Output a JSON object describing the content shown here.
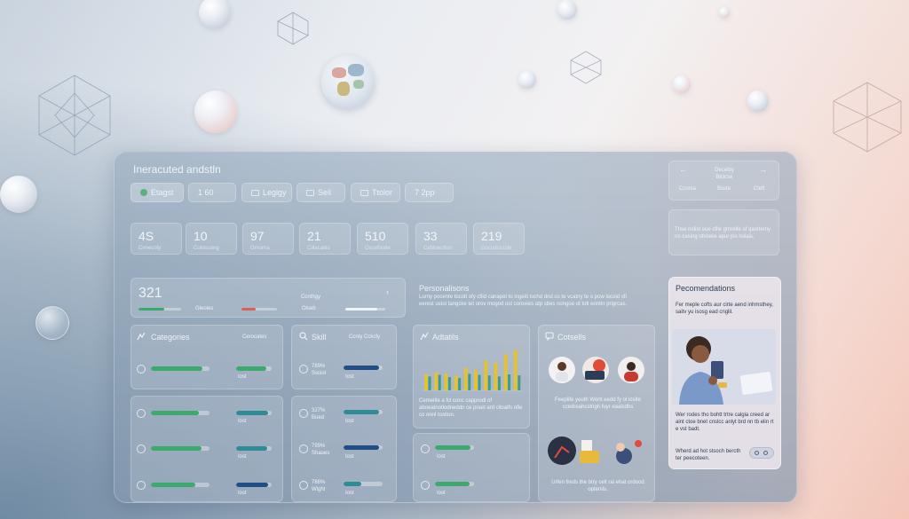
{
  "header": {
    "title": "Ineracuted andstln"
  },
  "filters": [
    {
      "label": "Etagst",
      "icon": "green-dot-icon"
    },
    {
      "label": "1 60"
    },
    {
      "label": "Leglgy",
      "icon": "square-icon"
    },
    {
      "label": "Seil",
      "icon": "square-icon"
    },
    {
      "label": "Ttolor",
      "icon": "square-icon"
    },
    {
      "label": "7 2pp"
    }
  ],
  "stats": [
    {
      "value": "4S",
      "label": "Cnnecoty"
    },
    {
      "value": "10",
      "label": "Colorcoing"
    },
    {
      "value": "97",
      "label": "Omonra"
    },
    {
      "value": "21",
      "label": "Cillacaitio"
    },
    {
      "value": "510",
      "label": "Oscefoutie"
    },
    {
      "value": "33",
      "label": "Cebtoection"
    },
    {
      "value": "219",
      "label": "Gociatioctsle"
    }
  ],
  "summary": {
    "value": "321",
    "label1": "Ccnthgy",
    "label2": "Gleoies",
    "label3": "Olseb",
    "chevron": "›",
    "progress_green": 0.6,
    "progress_red": 0.4,
    "progress_white": 0.8
  },
  "personalities": {
    "title": "Personalisons",
    "body": "Lorny pocente tocotl ofy cfild canapet to ingeiti lochd dnd co te vcatiry te o pow locoid sfi eerest ustoi tangcke tet orov mogod ost corovies atp sbes nongoe ot toti eontin prigrcas."
  },
  "categories": {
    "title": "Categories",
    "side": "Cerocates",
    "icon": "chart-icon",
    "rows": [
      {
        "icon": "circle-icon",
        "left": 0.88,
        "right": 0.85,
        "sub": "Iost",
        "right_color": "green"
      },
      {
        "icon": "circle-icon",
        "left": 0.82,
        "right": 0.9,
        "sub": "Iost",
        "right_color": "teal"
      },
      {
        "icon": "circle-icon",
        "left": 0.86,
        "right": 0.88,
        "sub": "Iost",
        "right_color": "teal"
      },
      {
        "icon": "circle-icon",
        "left": 0.76,
        "right": 0.9,
        "sub": "Iost",
        "right_color": "navy"
      }
    ]
  },
  "skill": {
    "title": "Skill",
    "side": "Ccnty Cckcfy",
    "icon": "search-icon",
    "rows": [
      {
        "pct": "789%",
        "sub": "Ssciol",
        "bar": 0.92,
        "color": "navy",
        "sub2": "Iost"
      },
      {
        "pct": "327%",
        "sub": "Boed",
        "bar": 0.9,
        "color": "teal",
        "sub2": "Iost"
      },
      {
        "pct": "799%",
        "sub": "Shaoes",
        "bar": 0.92,
        "color": "navy",
        "sub2": "Iost"
      },
      {
        "pct": "788%",
        "sub": "Wlght",
        "bar": 0.45,
        "color": "teal",
        "sub2": "Iost"
      }
    ]
  },
  "analytics": {
    "title": "Adtatils",
    "icon": "chart-icon",
    "text": "Cemeitle a fcl conc capprodl of aboeatnotlodneddn ce praet ard ciloaifs ofie co oreil tostion.",
    "rows": [
      {
        "icon": "circle-icon",
        "bar": 0.92,
        "sub": "Iost"
      },
      {
        "icon": "circle-icon",
        "bar": 0.88,
        "sub": "Iost"
      }
    ]
  },
  "chart_data": {
    "type": "bar",
    "series": [
      {
        "values": [
          3,
          3.4,
          3.1,
          2.8,
          4.2,
          3.8,
          5.6,
          5.2,
          6.8,
          7.6
        ]
      },
      {
        "values": [
          2.6,
          2.9,
          2.5,
          2.3,
          3.1,
          2.9,
          2.8,
          2.6,
          3.0,
          2.8
        ]
      }
    ]
  },
  "consults": {
    "title": "Cotsells",
    "icon": "chat-icon",
    "text": "Feeplife yeuth Wortt eedd fy ol loslte ccedreahcstrigh fuyr eaalsdhs",
    "text2": "Urfen freds the btry celt ral ehat ordood optenils."
  },
  "recommendations": {
    "title": "Pecomendations",
    "intro": "Fer meple cofts aur cirte aend inhmsthey, saitv yu isosg ead cnglil.",
    "text": "Wer rodes tho bohtt trtre calgia creed ar aint ctoe bnet cnslcc anlyt brd nn tb elin rt e vst badt.",
    "note": "Wherd ad hot stsoch bercth ter peecoteen."
  },
  "side_nav": {
    "prev": "←",
    "next": "→",
    "center": "Deceiby Blcicse",
    "items": [
      "Ccnrsa",
      "Bsste",
      "Cleft"
    ]
  },
  "side_note": "Thse nolist oue cfile grnrelle of qaorlerny no casing ofslowe apur pis holais.",
  "colors": {
    "green": "#3ea96c",
    "teal": "#2f8c94",
    "navy": "#1f4f86",
    "red": "#d9615c",
    "chart_yellow": "#e3c233",
    "chart_teal": "#3f9b8f"
  }
}
